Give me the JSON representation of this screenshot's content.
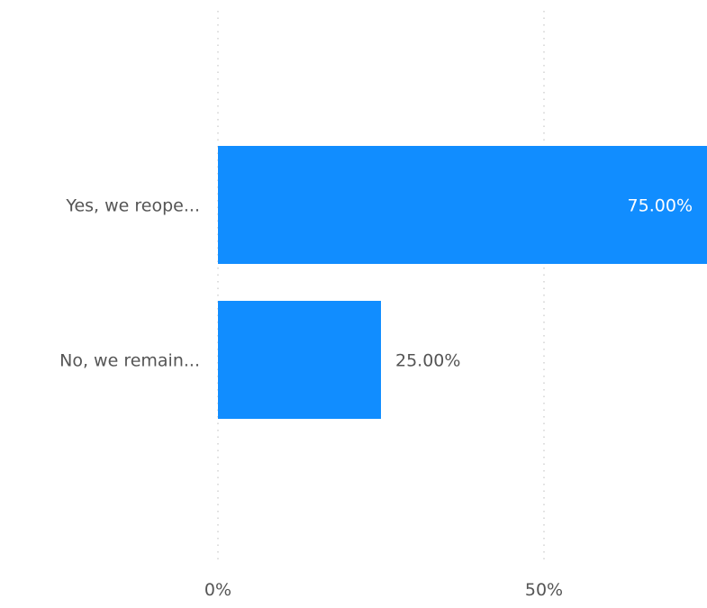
{
  "chart_data": {
    "type": "bar",
    "orientation": "horizontal",
    "categories": [
      "Yes, we reope...",
      "No, we remain..."
    ],
    "values": [
      75.0,
      25.0
    ],
    "data_labels": [
      "75.00%",
      "25.00%"
    ],
    "x_ticks": [
      0,
      50
    ],
    "x_tick_labels": [
      "0%",
      "50%"
    ],
    "xlim": [
      0,
      75
    ],
    "grid": true,
    "bar_color": "#118DFF",
    "title": "",
    "xlabel": "",
    "ylabel": ""
  }
}
